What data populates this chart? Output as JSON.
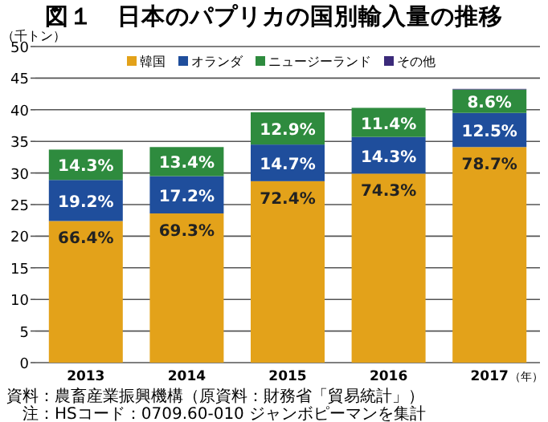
{
  "chart_data": {
    "type": "bar",
    "stacked": true,
    "title": "図１　日本のパプリカの国別輸入量の推移",
    "ylabel": "（千トン）",
    "xlabel": "（年）",
    "categories": [
      "2013",
      "2014",
      "2015",
      "2016",
      "2017"
    ],
    "series": [
      {
        "name": "韓国",
        "color": "#e3a21a",
        "values": [
          22.4,
          23.6,
          28.7,
          29.9,
          34.1
        ]
      },
      {
        "name": "オランダ",
        "color": "#1f4e9c",
        "values": [
          6.5,
          5.9,
          5.8,
          5.8,
          5.4
        ]
      },
      {
        "name": "ニュージーランド",
        "color": "#2e8b3e",
        "values": [
          4.8,
          4.6,
          5.1,
          4.6,
          3.7
        ]
      },
      {
        "name": "その他",
        "color": "#3b2a7a",
        "values": [
          0,
          0,
          0,
          0,
          0.1
        ]
      }
    ],
    "ylim": [
      0,
      50
    ],
    "yticks": [
      0,
      5,
      10,
      15,
      20,
      25,
      30,
      35,
      40,
      45,
      50
    ],
    "grid": "y",
    "legend": "top",
    "annotations": [
      {
        "text": "66.4%",
        "x": "2013",
        "y": 22.4
      },
      {
        "text": "69.3%",
        "x": "2014",
        "y": 23.6
      },
      {
        "text": "72.4%",
        "x": "2015",
        "y": 28.7
      },
      {
        "text": "74.3%",
        "x": "2016",
        "y": 29.9
      },
      {
        "text": "78.7%",
        "x": "2017",
        "y": 34.1
      },
      {
        "text": "19.2%",
        "x": "2013",
        "y": 28.9
      },
      {
        "text": "17.2%",
        "x": "2014",
        "y": 29.5
      },
      {
        "text": "14.7%",
        "x": "2015",
        "y": 34.5
      },
      {
        "text": "14.3%",
        "x": "2016",
        "y": 35.7
      },
      {
        "text": "12.5%",
        "x": "2017",
        "y": 39.5
      },
      {
        "text": "14.3%",
        "x": "2013",
        "y": 33.7
      },
      {
        "text": "13.4%",
        "x": "2014",
        "y": 34.1
      },
      {
        "text": "12.9%",
        "x": "2015",
        "y": 39.6
      },
      {
        "text": "11.4%",
        "x": "2016",
        "y": 40.3
      },
      {
        "text": "8.6%",
        "x": "2017",
        "y": 43.2
      },
      "資料：農畜産業振興機構（原資料：財務省「貿易統計」）",
      "注：HSコード：0709.60-010 ジャンボピーマンを集計"
    ]
  }
}
